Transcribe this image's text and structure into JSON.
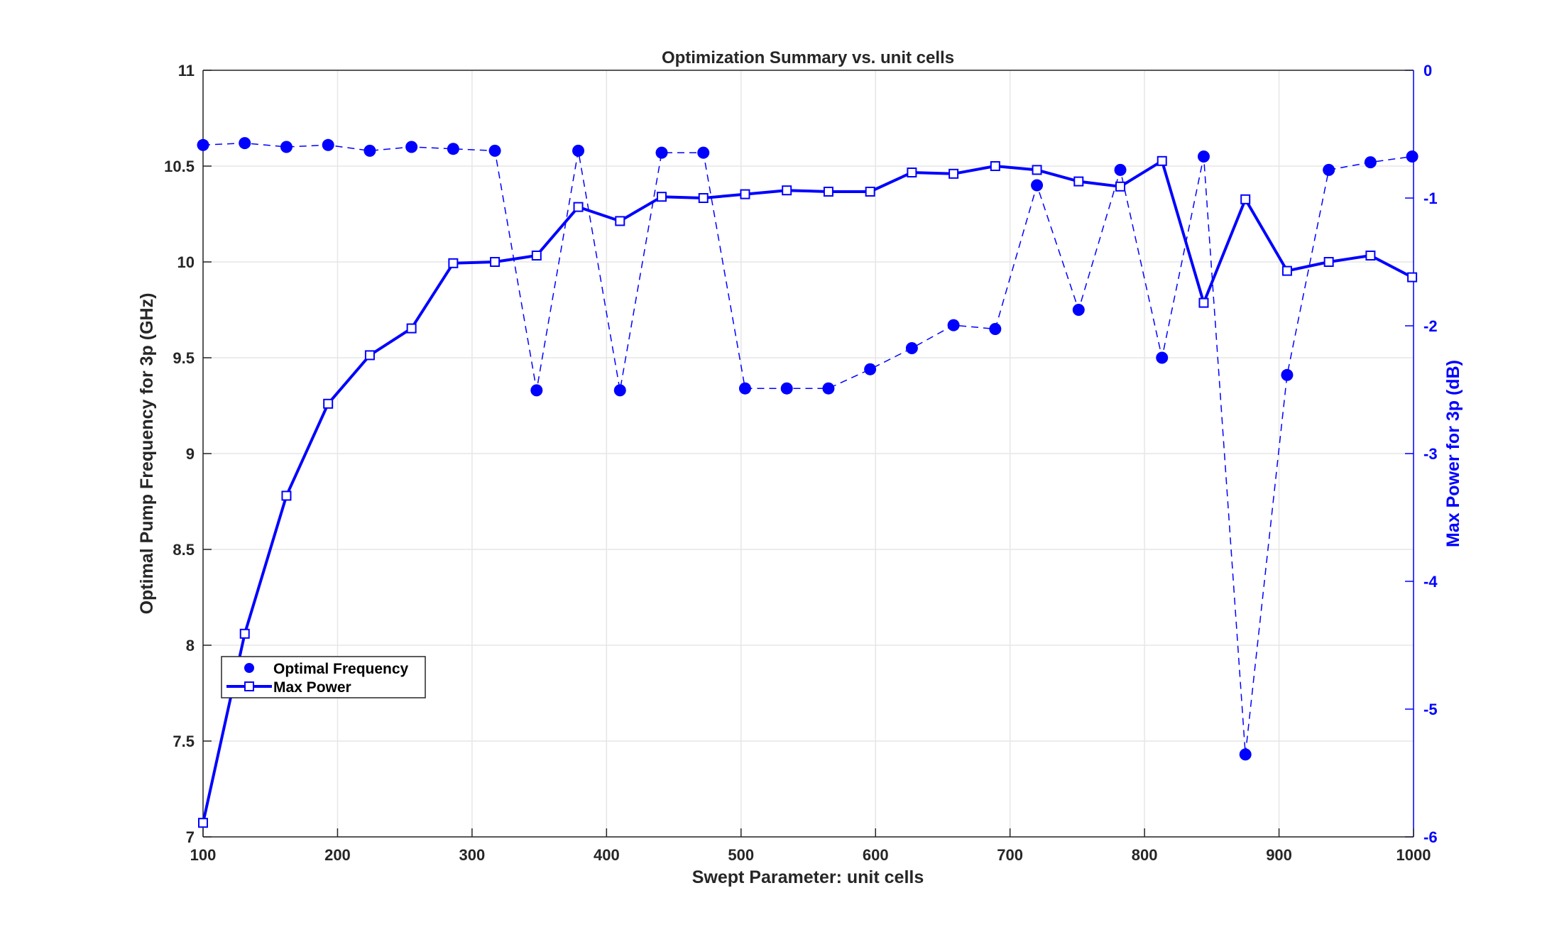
{
  "chart_data": {
    "type": "line",
    "title": "Optimization Summary vs. unit cells",
    "xlabel": "Swept Parameter: unit cells",
    "ylabel_left": "Optimal Pump Frequency for 3p (GHz)",
    "ylabel_right": "Max Power for 3p (dB)",
    "xlim": [
      100,
      1000
    ],
    "ylim_left": [
      7,
      11
    ],
    "ylim_right": [
      -6,
      0
    ],
    "xticks": [
      "100",
      "200",
      "300",
      "400",
      "500",
      "600",
      "700",
      "800",
      "900",
      "1000"
    ],
    "yticks_left": [
      "7",
      "7.5",
      "8",
      "8.5",
      "9",
      "9.5",
      "10",
      "10.5",
      "11"
    ],
    "yticks_right": [
      "-6",
      "-5",
      "-4",
      "-3",
      "-2",
      "-1",
      "0"
    ],
    "grid": true,
    "legend_position": "lower-left",
    "x": [
      100,
      131,
      162,
      193,
      224,
      255,
      286,
      317,
      348,
      379,
      410,
      441,
      472,
      503,
      534,
      565,
      596,
      627,
      658,
      689,
      720,
      751,
      782,
      813,
      844,
      875,
      906,
      937,
      968,
      999
    ],
    "series": [
      {
        "name": "Optimal Frequency",
        "axis": "left",
        "color": "#0000ff",
        "marker": "filled-circle",
        "line": "dashed",
        "values": [
          10.61,
          10.62,
          10.6,
          10.61,
          10.58,
          10.6,
          10.59,
          10.58,
          9.33,
          10.58,
          9.33,
          10.57,
          10.57,
          9.34,
          9.34,
          9.34,
          9.44,
          9.55,
          9.67,
          9.65,
          10.4,
          9.75,
          10.48,
          9.5,
          10.55,
          7.43,
          9.41,
          10.48,
          10.52,
          10.55
        ]
      },
      {
        "name": "Max Power",
        "axis": "right",
        "color": "#0000ff",
        "marker": "open-square",
        "line": "solid",
        "values": [
          -5.89,
          -4.41,
          -3.33,
          -2.61,
          -2.23,
          -2.02,
          -1.51,
          -1.5,
          -1.45,
          -1.07,
          -1.18,
          -0.99,
          -1.0,
          -0.97,
          -0.94,
          -0.95,
          -0.95,
          -0.8,
          -0.81,
          -0.75,
          -0.78,
          -0.87,
          -0.91,
          -0.71,
          -1.82,
          -1.01,
          -1.57,
          -1.5,
          -1.45,
          -1.62
        ]
      }
    ]
  }
}
